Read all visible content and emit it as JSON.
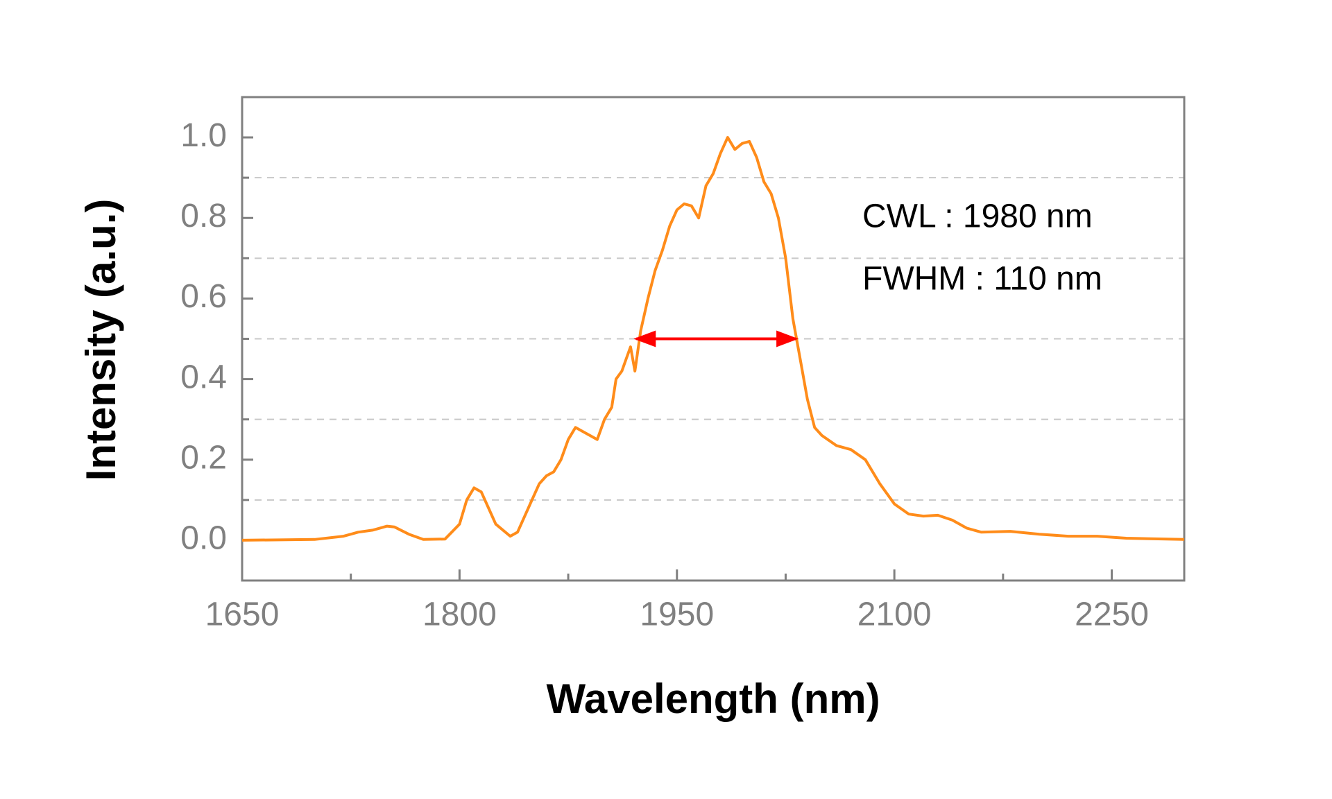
{
  "chart_data": {
    "type": "line",
    "x_label": "Wavelength (nm)",
    "y_label": "Intensity (a.u.)",
    "xlim": [
      1650,
      2300
    ],
    "xticks": [
      1650,
      1800,
      1950,
      2100,
      2250
    ],
    "xminorticks": [
      1725,
      1875,
      2025,
      2175
    ],
    "ylim": [
      -0.1,
      1.1
    ],
    "yticks": [
      {
        "value": 0,
        "label": "0.0"
      },
      0.2,
      0.4,
      0.6,
      0.8,
      {
        "value": 1,
        "label": "1.0"
      }
    ],
    "yminorticks": [
      0.1,
      0.3,
      0.5,
      0.7,
      0.9
    ],
    "grid": true,
    "annotations": [
      "CWL : 1980 nm",
      "FWHM : 110 nm"
    ],
    "fwhm_arrow": {
      "x": [
        1922,
        2032
      ],
      "y": 0.5,
      "color": "#ff0000"
    },
    "series": [
      {
        "color": "#ff8c1a",
        "x": [
          1650,
          1700,
          1720,
          1730,
          1740,
          1750,
          1755,
          1765,
          1775,
          1790,
          1800,
          1805,
          1810,
          1815,
          1820,
          1825,
          1835,
          1840,
          1845,
          1850,
          1855,
          1860,
          1865,
          1870,
          1875,
          1880,
          1885,
          1890,
          1895,
          1900,
          1905,
          1908,
          1912,
          1915,
          1918,
          1921,
          1925,
          1930,
          1935,
          1940,
          1945,
          1950,
          1955,
          1960,
          1965,
          1970,
          1975,
          1980,
          1985,
          1990,
          1995,
          2000,
          2005,
          2010,
          2015,
          2020,
          2025,
          2030,
          2035,
          2040,
          2045,
          2050,
          2060,
          2070,
          2080,
          2090,
          2100,
          2110,
          2120,
          2130,
          2140,
          2150,
          2160,
          2180,
          2200,
          2220,
          2240,
          2260,
          2300
        ],
        "values": [
          0,
          0.002,
          0.01,
          0.02,
          0.025,
          0.035,
          0.033,
          0.015,
          0.002,
          0.003,
          0.04,
          0.1,
          0.13,
          0.12,
          0.08,
          0.04,
          0.01,
          0.02,
          0.06,
          0.1,
          0.14,
          0.16,
          0.17,
          0.2,
          0.25,
          0.28,
          0.27,
          0.26,
          0.25,
          0.3,
          0.33,
          0.4,
          0.42,
          0.45,
          0.48,
          0.42,
          0.52,
          0.6,
          0.67,
          0.72,
          0.78,
          0.82,
          0.835,
          0.83,
          0.8,
          0.88,
          0.91,
          0.96,
          1.0,
          0.97,
          0.985,
          0.99,
          0.95,
          0.89,
          0.86,
          0.8,
          0.7,
          0.55,
          0.45,
          0.35,
          0.28,
          0.26,
          0.235,
          0.225,
          0.2,
          0.14,
          0.09,
          0.065,
          0.06,
          0.062,
          0.05,
          0.03,
          0.02,
          0.022,
          0.015,
          0.01,
          0.01,
          0.005,
          0.002
        ]
      }
    ]
  }
}
